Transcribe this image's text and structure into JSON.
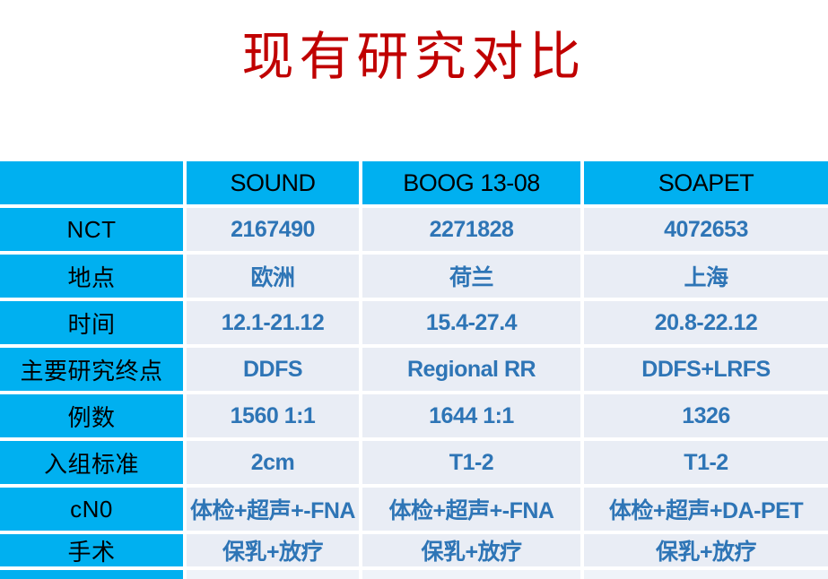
{
  "title": "现有研究对比",
  "colors": {
    "title_red": "#C00000",
    "accent_cyan": "#00B0F0",
    "cell_background": "#E9EDF5",
    "data_text_blue": "#2E75B6",
    "header_text": "#000000"
  },
  "table": {
    "columns": [
      "",
      "SOUND",
      "BOOG 13-08",
      "SOAPET"
    ],
    "rows": [
      {
        "label": "NCT",
        "values": [
          "2167490",
          "2271828",
          "4072653"
        ]
      },
      {
        "label": "地点",
        "values": [
          "欧洲",
          "荷兰",
          "上海"
        ]
      },
      {
        "label": "时间",
        "values": [
          "12.1-21.12",
          "15.4-27.4",
          "20.8-22.12"
        ]
      },
      {
        "label": "主要研究终点",
        "values": [
          "DDFS",
          "Regional RR",
          "DDFS+LRFS"
        ]
      },
      {
        "label": "例数",
        "values": [
          "1560 1:1",
          "1644 1:1",
          "1326"
        ]
      },
      {
        "label": "入组标准",
        "values": [
          "2cm",
          "T1-2",
          "T1-2"
        ]
      },
      {
        "label": "cN0",
        "values": [
          "体检+超声+-FNA",
          "体检+超声+-FNA",
          "体检+超声+DA-PET"
        ]
      },
      {
        "label": "手术",
        "values": [
          "保乳+放疗",
          "保乳+放疗",
          "保乳+放疗"
        ]
      }
    ]
  }
}
